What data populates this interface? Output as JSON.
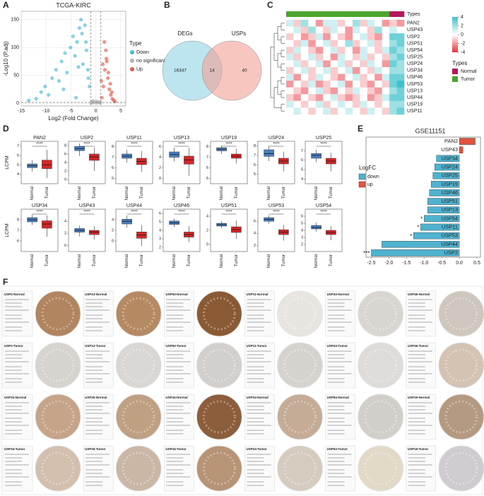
{
  "panel_labels": [
    "A",
    "B",
    "C",
    "D",
    "E",
    "F"
  ],
  "chart_data": [
    {
      "type": "scatter",
      "title": "TCGA-KIRC",
      "xlabel": "Log2 (Fold Change)",
      "ylabel": "-Log10 (P.adj)",
      "legend_title": "Type",
      "xlim": [
        -15,
        6
      ],
      "ylim": [
        -5,
        165
      ],
      "xticks": [
        -15,
        -10,
        -5,
        0,
        5
      ],
      "yticks": [
        0,
        50,
        100,
        150
      ],
      "grid": true,
      "vlines": [
        -1,
        1
      ],
      "hline": 1.3,
      "series": [
        {
          "name": "Down",
          "color": "#4cb8d6",
          "x": [
            -13.5,
            -12,
            -11,
            -10.2,
            -9.5,
            -8.8,
            -8,
            -7.4,
            -6.9,
            -6.2,
            -5.8,
            -5.1,
            -4.6,
            -4.2,
            -3.8,
            -3.3,
            -3,
            -2.6,
            -2.2,
            -1.9,
            -1.6,
            -1.3,
            -6.5,
            -4,
            -2.8,
            -3.5,
            -1.5,
            -2
          ],
          "values": [
            5,
            8,
            20,
            30,
            15,
            45,
            60,
            40,
            75,
            90,
            55,
            100,
            120,
            85,
            110,
            135,
            150,
            70,
            140,
            95,
            60,
            30,
            25,
            10,
            125,
            65,
            45,
            110
          ]
        },
        {
          "name": "no significant",
          "color": "#b3b3b3",
          "x": [
            -0.8,
            -0.5,
            -0.2,
            0.1,
            0.4,
            0.7,
            -0.6,
            0.3,
            0.9,
            -0.9
          ],
          "values": [
            2,
            1,
            3,
            0.5,
            2,
            1,
            4,
            3,
            1.5,
            0.8
          ]
        },
        {
          "name": "Up",
          "color": "#e5594b",
          "x": [
            1.2,
            1.5,
            1.8,
            2.1,
            2.4,
            2.7,
            3,
            3.3,
            3.6,
            1.4,
            2,
            2.5,
            3.2,
            1.1,
            1.7,
            2.9,
            3.8,
            2.2
          ],
          "values": [
            10,
            30,
            60,
            80,
            45,
            25,
            15,
            8,
            5,
            70,
            95,
            55,
            20,
            40,
            110,
            35,
            3,
            75
          ]
        }
      ]
    },
    {
      "type": "venn",
      "sets": [
        {
          "name": "DEGs",
          "color": "#8fd3e6"
        },
        {
          "name": "USPs",
          "color": "#f2a093"
        }
      ],
      "values": [
        16347,
        14,
        40
      ]
    },
    {
      "type": "heatmap",
      "rows": [
        "PAN2",
        "USP43",
        "USP2",
        "USP51",
        "USP54",
        "USP25",
        "USP24",
        "USP34",
        "USP46",
        "USP53",
        "USP13",
        "USP44",
        "USP19",
        "USP11"
      ],
      "column_types": [
        "Tumor",
        "Tumor",
        "Tumor",
        "Tumor",
        "Tumor",
        "Tumor",
        "Tumor",
        "Tumor",
        "Tumor",
        "Tumor",
        "Tumor",
        "Tumor",
        "Tumor",
        "Tumor",
        "Normal",
        "Normal"
      ],
      "values": [
        [
          1,
          -1,
          2,
          0,
          -2,
          1,
          1,
          -1,
          0,
          2,
          -1,
          1,
          0,
          -2,
          -1,
          -2
        ],
        [
          0,
          1,
          -1,
          2,
          0,
          -1,
          1,
          0,
          -2,
          1,
          0,
          -1,
          2,
          0,
          1,
          0
        ],
        [
          -1,
          0,
          -2,
          -1,
          1,
          -2,
          0,
          -1,
          -2,
          0,
          1,
          -1,
          -2,
          0,
          3,
          3
        ],
        [
          0,
          -1,
          1,
          -2,
          0,
          1,
          -1,
          0,
          2,
          -1,
          0,
          1,
          -1,
          0,
          2,
          3
        ],
        [
          -1,
          1,
          0,
          -1,
          -2,
          0,
          1,
          -1,
          0,
          -2,
          1,
          0,
          -1,
          1,
          3,
          2
        ],
        [
          1,
          -1,
          0,
          1,
          -1,
          0,
          -2,
          1,
          0,
          -1,
          1,
          -1,
          0,
          -1,
          2,
          3
        ],
        [
          0,
          1,
          -1,
          0,
          1,
          -2,
          0,
          1,
          -1,
          0,
          -1,
          1,
          0,
          -2,
          3,
          2
        ],
        [
          -1,
          0,
          1,
          -1,
          0,
          1,
          -1,
          0,
          1,
          -2,
          0,
          -1,
          1,
          0,
          2,
          2
        ],
        [
          1,
          -2,
          0,
          -1,
          1,
          0,
          -1,
          -2,
          0,
          1,
          -1,
          0,
          -2,
          1,
          3,
          3
        ],
        [
          -2,
          0,
          -1,
          1,
          -2,
          -1,
          0,
          1,
          -2,
          0,
          -1,
          -2,
          0,
          -1,
          3,
          4
        ],
        [
          0,
          -1,
          -2,
          0,
          1,
          -1,
          -2,
          0,
          -1,
          1,
          0,
          -1,
          -2,
          0,
          2,
          3
        ],
        [
          -1,
          -2,
          0,
          -1,
          -2,
          0,
          1,
          -1,
          -2,
          -1,
          0,
          -2,
          -1,
          1,
          3,
          3
        ],
        [
          1,
          0,
          -1,
          0,
          1,
          -1,
          0,
          1,
          0,
          -1,
          1,
          0,
          -1,
          0,
          2,
          2
        ],
        [
          0,
          1,
          0,
          -1,
          0,
          1,
          -1,
          0,
          1,
          0,
          -1,
          1,
          0,
          -1,
          2,
          3
        ]
      ],
      "zlim": [
        -4,
        4
      ],
      "colorbar_ticks": [
        -4,
        -2,
        0,
        2,
        4
      ],
      "colors": {
        "low": "#e8323a",
        "mid": "#ffffff",
        "high": "#3ec1c9"
      },
      "annotation_title": "Types",
      "legend_title": "Types",
      "legend": [
        {
          "name": "Normal",
          "color": "#b5195b"
        },
        {
          "name": "Tumor",
          "color": "#4aa52e"
        }
      ]
    },
    {
      "type": "box",
      "ylabel": "LCPM",
      "categories": [
        "Normal",
        "Tumor"
      ],
      "colors": [
        "#4a7fc1",
        "#d62728"
      ],
      "panels": [
        {
          "title": "PAN2",
          "annotation": "****",
          "ylim": [
            3,
            7.5
          ],
          "yticks": [
            4,
            5,
            6,
            7
          ],
          "stats": [
            [
              4.3,
              4.7,
              4.9,
              5.1,
              5.5
            ],
            [
              3.6,
              4.6,
              5.0,
              5.5,
              6.6
            ]
          ]
        },
        {
          "title": "USP2",
          "annotation": "****",
          "ylim": [
            -1,
            9
          ],
          "yticks": [
            0,
            2,
            4,
            6,
            8
          ],
          "stats": [
            [
              5.5,
              6.8,
              7.3,
              7.8,
              8.5
            ],
            [
              2,
              4.5,
              5.3,
              6,
              7.6
            ]
          ]
        },
        {
          "title": "USP11",
          "annotation": "****",
          "ylim": [
            4.5,
            8.5
          ],
          "yticks": [
            5,
            6,
            7,
            8
          ],
          "stats": [
            [
              6.5,
              6.9,
              7.1,
              7.3,
              7.7
            ],
            [
              5.6,
              6.3,
              6.6,
              6.9,
              7.6
            ]
          ]
        },
        {
          "title": "USP13",
          "annotation": "****",
          "ylim": [
            -1,
            7
          ],
          "yticks": [
            0,
            2,
            4,
            6
          ],
          "stats": [
            [
              3.2,
              4.0,
              4.5,
              5.0,
              5.8
            ],
            [
              0.5,
              2.7,
              3.5,
              4.2,
              5.8
            ]
          ]
        },
        {
          "title": "USP19",
          "annotation": "****",
          "ylim": [
            4.5,
            8.5
          ],
          "yticks": [
            5,
            6,
            7,
            8
          ],
          "stats": [
            [
              7.3,
              7.6,
              7.75,
              7.9,
              8.1
            ],
            [
              6.4,
              6.9,
              7.1,
              7.3,
              7.8
            ]
          ]
        },
        {
          "title": "USP24",
          "annotation": "****",
          "ylim": [
            4,
            8.5
          ],
          "yticks": [
            5,
            6,
            7,
            8
          ],
          "stats": [
            [
              6.4,
              6.9,
              7.2,
              7.6,
              8
            ],
            [
              5.3,
              6.1,
              6.4,
              6.7,
              7.4
            ]
          ]
        },
        {
          "title": "USP25",
          "annotation": "****",
          "ylim": [
            3.5,
            8
          ],
          "yticks": [
            4,
            5,
            6,
            7
          ],
          "stats": [
            [
              5.8,
              6.2,
              6.5,
              6.7,
              7.1
            ],
            [
              4.8,
              5.6,
              5.9,
              6.2,
              6.8
            ]
          ]
        },
        {
          "title": "USP34",
          "annotation": "****",
          "ylim": [
            5,
            9
          ],
          "yticks": [
            6,
            7,
            8
          ],
          "stats": [
            [
              7.5,
              7.8,
              8.0,
              8.2,
              8.5
            ],
            [
              6.4,
              7.2,
              7.6,
              7.9,
              8.4
            ]
          ]
        },
        {
          "title": "USP43",
          "annotation": "****",
          "ylim": [
            -1,
            6
          ],
          "yticks": [
            0,
            2,
            4
          ],
          "stats": [
            [
              1.5,
              2.2,
              2.5,
              2.8,
              3.3
            ],
            [
              1.0,
              1.8,
              2.2,
              2.5,
              3.2
            ]
          ]
        },
        {
          "title": "USP44",
          "annotation": "****",
          "ylim": [
            -2,
            6
          ],
          "yticks": [
            0,
            2,
            4
          ],
          "stats": [
            [
              2.5,
              3.2,
              3.7,
              4.1,
              4.8
            ],
            [
              -1,
              0.5,
              1.1,
              1.7,
              3
            ]
          ]
        },
        {
          "title": "USP46",
          "annotation": "****",
          "ylim": [
            1.5,
            6.5
          ],
          "yticks": [
            2,
            3,
            4,
            5,
            6
          ],
          "stats": [
            [
              4.4,
              4.7,
              4.9,
              5.1,
              5.4
            ],
            [
              2.6,
              3.2,
              3.5,
              3.8,
              4.5
            ]
          ]
        },
        {
          "title": "USP51",
          "annotation": "****",
          "ylim": [
            -1,
            5
          ],
          "yticks": [
            0,
            2,
            4
          ],
          "stats": [
            [
              2.3,
              2.6,
              2.8,
              3.0,
              3.3
            ],
            [
              0.8,
              1.7,
              2.1,
              2.5,
              3.4
            ]
          ]
        },
        {
          "title": "USP53",
          "annotation": "****",
          "ylim": [
            1,
            8
          ],
          "yticks": [
            2,
            4,
            6
          ],
          "stats": [
            [
              5.6,
              6.0,
              6.3,
              6.6,
              7
            ],
            [
              2.8,
              3.8,
              4.2,
              4.6,
              5.4
            ]
          ]
        },
        {
          "title": "USP54",
          "annotation": "****",
          "ylim": [
            1,
            7
          ],
          "yticks": [
            2,
            3,
            4,
            5,
            6
          ],
          "stats": [
            [
              3.8,
              4.2,
              4.4,
              4.7,
              5.1
            ],
            [
              2.6,
              3.4,
              3.7,
              4.0,
              4.6
            ]
          ]
        }
      ]
    },
    {
      "type": "bar",
      "orientation": "horizontal",
      "title": "GSE11151",
      "legend_title": "LogFC",
      "categories": [
        "PAN2",
        "USP43",
        "USP34",
        "USP24",
        "USP25",
        "USP19",
        "USP46",
        "USP51",
        "USP13",
        "USP54",
        "USP11",
        "USP53",
        "USP44",
        "USP2"
      ],
      "xlim": [
        -2.65,
        0.6
      ],
      "xticks": [
        -2.5,
        {
          "value": -2,
          "label": "-2.0"
        },
        -1.5,
        {
          "value": -1,
          "label": "-1.0"
        },
        -0.5,
        {
          "value": 0,
          "label": "0.0"
        },
        0.5
      ],
      "series": [
        {
          "name": "down",
          "color": "#4fb3cf",
          "values": [
            null,
            null,
            -0.65,
            -0.7,
            -0.75,
            -0.8,
            -0.85,
            -0.9,
            -0.9,
            -1.0,
            -1.1,
            -1.3,
            -2.2,
            -2.5
          ]
        },
        {
          "name": "up",
          "color": "#e0533f",
          "values": [
            0.45,
            0.1,
            null,
            null,
            null,
            null,
            null,
            null,
            null,
            null,
            null,
            null,
            null,
            null
          ]
        }
      ],
      "annotations": [
        {
          "category": "USP54",
          "text": "*"
        },
        {
          "category": "USP11",
          "text": "*"
        },
        {
          "category": "USP53",
          "text": "*"
        },
        {
          "category": "USP2",
          "text": "***"
        }
      ]
    }
  ],
  "tissue_panel": {
    "tiles": [
      {
        "title": "USP2-Normal",
        "stain": "#b08560"
      },
      {
        "title": "USP13-Normal",
        "stain": "#b58a62"
      },
      {
        "title": "USP53-Normal",
        "stain": "#8a5a35"
      },
      {
        "title": "USP11-Normal",
        "stain": "#e8e4e0"
      },
      {
        "title": "USP43-Normal",
        "stain": "#d9d6d2"
      },
      {
        "title": "USP46-Normal",
        "stain": "#cfc6bd"
      },
      {
        "title": "USP2-Tumor",
        "stain": "#d7d3cf"
      },
      {
        "title": "USP13-Tumor",
        "stain": "#d9d6d3"
      },
      {
        "title": "USP53-Tumor",
        "stain": "#d3cfcc"
      },
      {
        "title": "USP11-Tumor",
        "stain": "#d6d3cf"
      },
      {
        "title": "USP43-Tumor",
        "stain": "#dedbd8"
      },
      {
        "title": "USP46-Tumor",
        "stain": "#d4c2b2"
      },
      {
        "title": "USP34-Normal",
        "stain": "#c6a489"
      },
      {
        "title": "USP25-Normal",
        "stain": "#bfa083"
      },
      {
        "title": "USP44-Normal",
        "stain": "#8c5e3b"
      },
      {
        "title": "USP24-Normal",
        "stain": "#c4ac96"
      },
      {
        "title": "USP54-Normal",
        "stain": "#d2cfcb"
      },
      {
        "title": "USP19-Normal",
        "stain": "#b59a82"
      },
      {
        "title": "USP34-Tumor",
        "stain": "#d3bfae"
      },
      {
        "title": "USP25-Tumor",
        "stain": "#cbb7a6"
      },
      {
        "title": "USP44-Tumor",
        "stain": "#b89477"
      },
      {
        "title": "USP24-Tumor",
        "stain": "#d6cbbf"
      },
      {
        "title": "USP54-Tumor",
        "stain": "#e2d9c7"
      },
      {
        "title": "USP19-Tumor",
        "stain": "#cfcbd0"
      }
    ]
  }
}
